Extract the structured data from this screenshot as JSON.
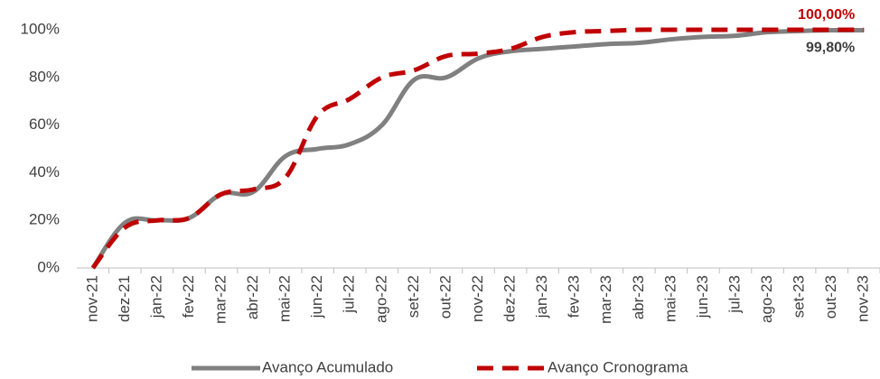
{
  "chart_data": {
    "type": "line",
    "categories": [
      "nov-21",
      "dez-21",
      "jan-22",
      "fev-22",
      "mar-22",
      "abr-22",
      "mai-22",
      "jun-22",
      "jul-22",
      "ago-22",
      "set-22",
      "out-22",
      "nov-22",
      "dez-22",
      "jan-23",
      "fev-23",
      "mar-23",
      "abr-23",
      "mai-23",
      "jun-23",
      "jul-23",
      "ago-23",
      "set-23",
      "out-23",
      "nov-23"
    ],
    "series": [
      {
        "name": "Avanço Acumulado",
        "color": "#808080",
        "dash": false,
        "values": [
          0,
          19,
          20,
          21,
          31,
          32,
          47,
          50,
          52,
          60,
          79,
          80,
          88,
          91,
          92,
          93,
          94,
          94.5,
          96,
          97,
          97.5,
          99,
          99.5,
          99.8,
          99.8
        ],
        "value_labels": [
          null,
          null,
          null,
          null,
          null,
          null,
          null,
          null,
          null,
          null,
          null,
          null,
          null,
          null,
          null,
          null,
          null,
          null,
          null,
          null,
          null,
          null,
          null,
          null,
          "99,80%"
        ]
      },
      {
        "name": "Avanço Cronograma",
        "color": "#c00000",
        "dash": true,
        "values": [
          0,
          17,
          20,
          21,
          31,
          33,
          38,
          64,
          71,
          80,
          83,
          89,
          90,
          92,
          97,
          99,
          99.5,
          100,
          100,
          100,
          100,
          100,
          100,
          100,
          100
        ],
        "value_labels": [
          null,
          null,
          null,
          null,
          null,
          null,
          null,
          null,
          null,
          null,
          null,
          null,
          null,
          null,
          null,
          null,
          null,
          null,
          null,
          null,
          null,
          null,
          null,
          null,
          "100,00%"
        ]
      }
    ],
    "ylim": [
      0,
      100
    ],
    "yticks": [
      {
        "value": 0,
        "label": "0%"
      },
      {
        "value": 20,
        "label": "20%"
      },
      {
        "value": 40,
        "label": "40%"
      },
      {
        "value": 60,
        "label": "60%"
      },
      {
        "value": 80,
        "label": "80%"
      },
      {
        "value": 100,
        "label": "100%"
      }
    ],
    "legend": "bottom"
  }
}
